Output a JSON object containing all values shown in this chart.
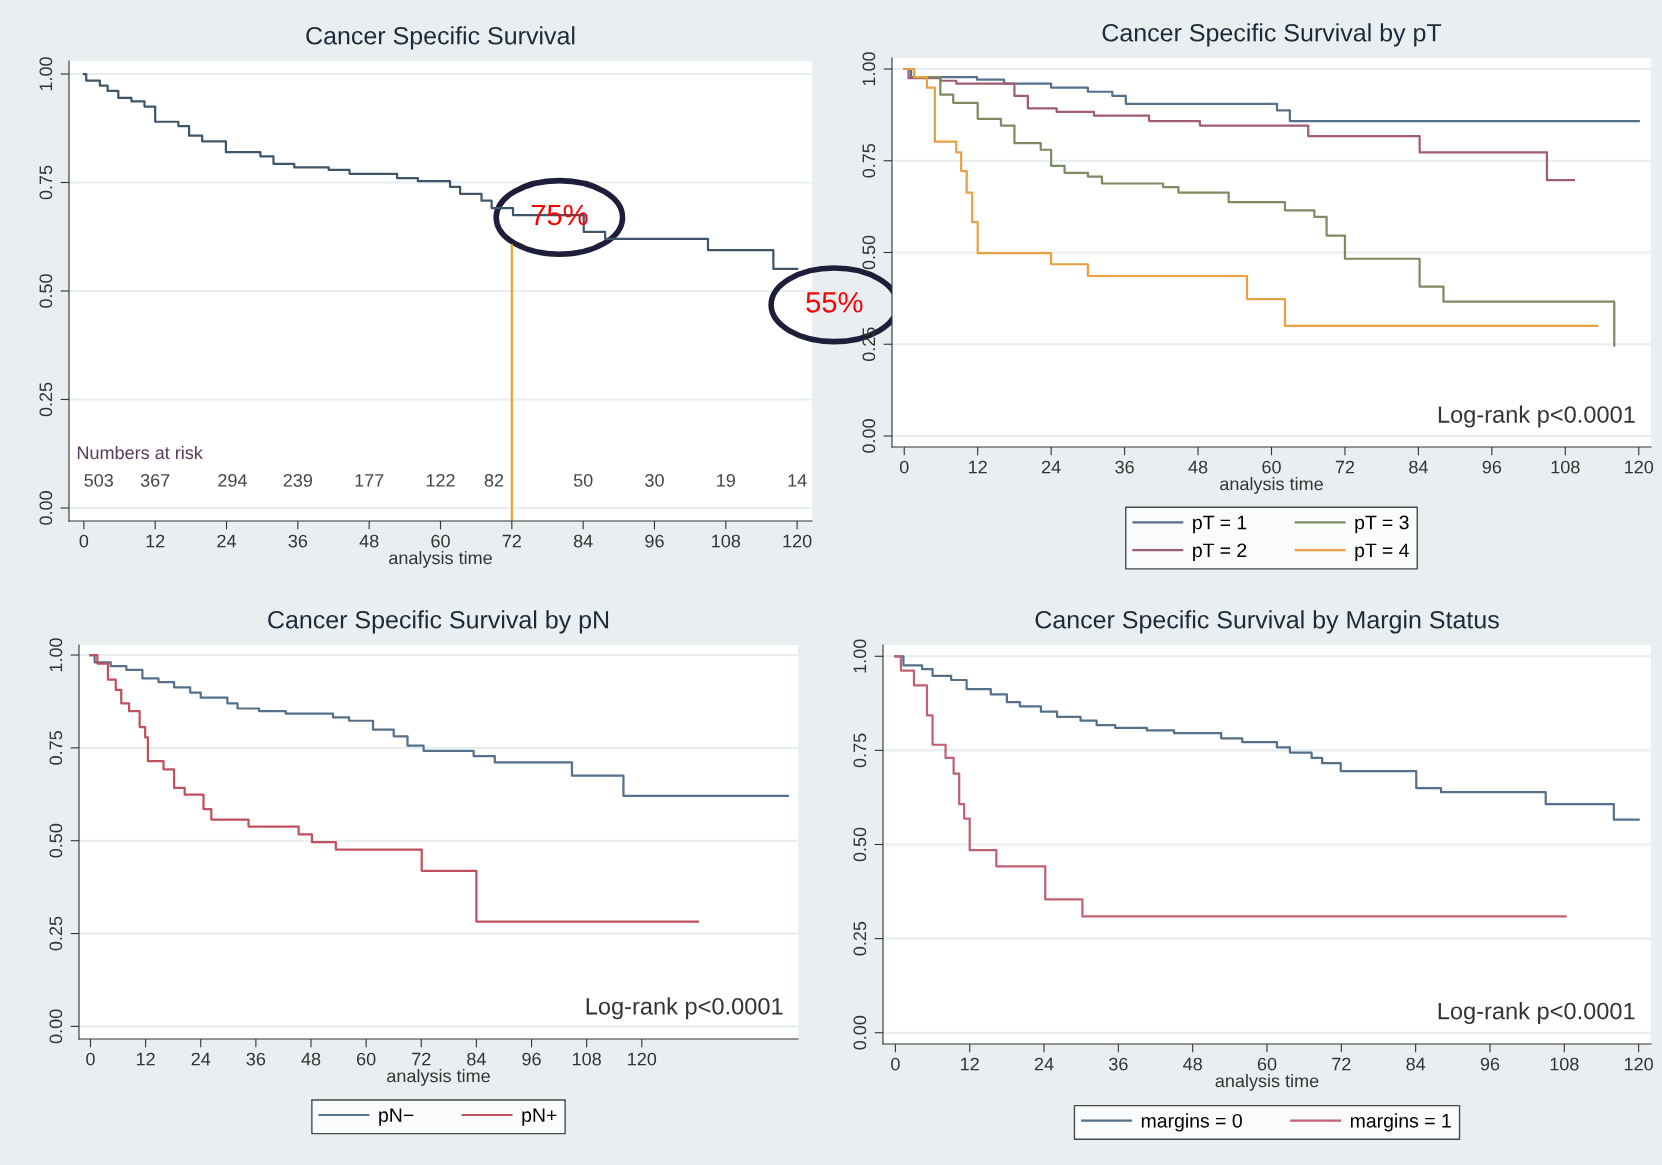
{
  "chart_data": [
    {
      "type": "step",
      "title": "Cancer Specific Survival",
      "xlabel": "analysis time",
      "xlim": [
        -2.5,
        122.5
      ],
      "ylim": [
        -0.03,
        1.03
      ],
      "xticks": [
        0,
        12,
        24,
        36,
        48,
        60,
        72,
        84,
        96,
        108,
        120
      ],
      "yticks": [
        {
          "value": 0,
          "label": "0.00"
        },
        {
          "value": 0.25,
          "label": "0.25"
        },
        {
          "value": 0.5,
          "label": "0.50"
        },
        {
          "value": 0.75,
          "label": "0.75"
        },
        {
          "value": 1,
          "label": "1.00"
        }
      ],
      "grid": "y",
      "legend": false,
      "series": [
        {
          "color": "#3f566a",
          "x": [
            0,
            0.4,
            2.7,
            4.0,
            5.8,
            8.0,
            10.2,
            12.0,
            15.9,
            17.7,
            19.9,
            23.9,
            29.7,
            31.9,
            35.4,
            41.2,
            44.7,
            52.7,
            56.2,
            61.6,
            63.3,
            66.9,
            68.6,
            72.2,
            84.1,
            87.7,
            105,
            116,
            120
          ],
          "values": [
            1.0,
            0.985,
            0.973,
            0.961,
            0.945,
            0.937,
            0.925,
            0.89,
            0.88,
            0.858,
            0.845,
            0.82,
            0.81,
            0.793,
            0.785,
            0.779,
            0.77,
            0.76,
            0.753,
            0.74,
            0.724,
            0.708,
            0.691,
            0.675,
            0.636,
            0.62,
            0.594,
            0.551,
            0.551
          ]
        }
      ],
      "ref_lines": [
        {
          "axis": "x",
          "value": 72,
          "color": "#e8a020"
        }
      ],
      "annotations": [
        "Numbers at risk",
        "503",
        "367",
        "294",
        "239",
        "177",
        "122",
        "82",
        "50",
        "30",
        "19",
        "14",
        "75%",
        "55%"
      ]
    },
    {
      "type": "step",
      "title": "Cancer Specific Survival by pT",
      "xlabel": "analysis time",
      "xlim": [
        -2,
        122
      ],
      "ylim": [
        -0.03,
        1.03
      ],
      "xticks": [
        0,
        12,
        24,
        36,
        48,
        60,
        72,
        84,
        96,
        108,
        120
      ],
      "yticks": [
        {
          "value": 0,
          "label": "0.00"
        },
        {
          "value": 0.25,
          "label": "0.25"
        },
        {
          "value": 0.5,
          "label": "0.50"
        },
        {
          "value": 0.75,
          "label": "0.75"
        },
        {
          "value": 1,
          "label": "1.00"
        }
      ],
      "grid": "y",
      "legend": "bottom",
      "series": [
        {
          "name": "pT = 1",
          "color": "#56708a",
          "x": [
            0,
            1.1,
            11.9,
            16.3,
            24,
            30,
            34,
            36.2,
            60.9,
            63,
            120
          ],
          "values": [
            1.0,
            0.978,
            0.971,
            0.96,
            0.949,
            0.938,
            0.927,
            0.905,
            0.887,
            0.858,
            0.858
          ]
        },
        {
          "name": "pT = 2",
          "color": "#a05c74",
          "x": [
            0,
            0.7,
            5.9,
            8.5,
            18,
            20.2,
            24.9,
            31,
            40,
            48.3,
            66,
            84.2,
            105,
            109.4
          ],
          "values": [
            1.0,
            0.975,
            0.968,
            0.96,
            0.927,
            0.893,
            0.883,
            0.873,
            0.858,
            0.846,
            0.817,
            0.773,
            0.697,
            0.697
          ]
        },
        {
          "name": "pT = 3",
          "color": "#7d8a62",
          "x": [
            0,
            1.6,
            5.9,
            8,
            12,
            15.8,
            18,
            22.3,
            24,
            26.2,
            30,
            32.3,
            42.3,
            44.8,
            53,
            62.2,
            67,
            69,
            72,
            84.2,
            88.1,
            116
          ],
          "values": [
            1.0,
            0.978,
            0.93,
            0.908,
            0.864,
            0.846,
            0.798,
            0.78,
            0.736,
            0.717,
            0.707,
            0.688,
            0.678,
            0.663,
            0.637,
            0.615,
            0.597,
            0.546,
            0.483,
            0.407,
            0.366,
            0.246
          ]
        },
        {
          "name": "pT = 4",
          "color": "#e8a040",
          "x": [
            0,
            1.6,
            3.7,
            5,
            8.5,
            9.3,
            10.2,
            11.1,
            12,
            24,
            30,
            56,
            62.2,
            113.2
          ],
          "values": [
            1.0,
            0.978,
            0.949,
            0.802,
            0.773,
            0.722,
            0.663,
            0.583,
            0.498,
            0.468,
            0.436,
            0.373,
            0.3,
            0.3
          ]
        }
      ],
      "annotations": [
        "Log-rank p<0.0001"
      ]
    },
    {
      "type": "step",
      "title": "Cancer Specific Survival by pN",
      "xlabel": "analysis time",
      "xlim": [
        -2.5,
        154
      ],
      "ylim": [
        -0.034,
        1.027
      ],
      "xticks": [
        0,
        12,
        24,
        36,
        48,
        60,
        72,
        84,
        96,
        108,
        120
      ],
      "yticks": [
        {
          "value": 0,
          "label": "0.00"
        },
        {
          "value": 0.25,
          "label": "0.25"
        },
        {
          "value": 0.5,
          "label": "0.50"
        },
        {
          "value": 0.75,
          "label": "0.75"
        },
        {
          "value": 1,
          "label": "1.00"
        }
      ],
      "grid": "y",
      "legend": "bottom",
      "series": [
        {
          "name": "pN−",
          "color": "#56708a",
          "x": [
            0,
            0.9,
            4.4,
            7.8,
            11.3,
            14.8,
            18.2,
            21.7,
            24,
            29.8,
            32,
            36.7,
            42.5,
            52.8,
            56.3,
            61.5,
            66,
            69,
            72.5,
            83.4,
            88,
            104.8,
            116,
            151.8
          ],
          "values": [
            1.0,
            0.98,
            0.97,
            0.96,
            0.937,
            0.927,
            0.913,
            0.899,
            0.885,
            0.87,
            0.856,
            0.849,
            0.842,
            0.832,
            0.823,
            0.799,
            0.781,
            0.756,
            0.742,
            0.728,
            0.711,
            0.675,
            0.621,
            0.621
          ]
        },
        {
          "name": "pN+",
          "color": "#c0505e",
          "x": [
            0,
            1.5,
            3.8,
            5.5,
            6.7,
            8.4,
            10.7,
            11.9,
            12.5,
            15.9,
            18.2,
            20.5,
            24.6,
            26.3,
            34.4,
            45.3,
            48.2,
            53.4,
            72.1,
            84,
            132.2
          ],
          "values": [
            1.0,
            0.977,
            0.934,
            0.906,
            0.87,
            0.849,
            0.806,
            0.778,
            0.714,
            0.692,
            0.642,
            0.624,
            0.585,
            0.557,
            0.538,
            0.517,
            0.496,
            0.476,
            0.419,
            0.282,
            0.282
          ]
        }
      ],
      "annotations": [
        "Log-rank p<0.0001"
      ]
    },
    {
      "type": "step",
      "title": "Cancer Specific Survival by Margin Status",
      "xlabel": "analysis time",
      "xlim": [
        -2,
        122
      ],
      "ylim": [
        -0.03,
        1.03
      ],
      "xticks": [
        0,
        12,
        24,
        36,
        48,
        60,
        72,
        84,
        96,
        108,
        120
      ],
      "yticks": [
        {
          "value": 0,
          "label": "0.00"
        },
        {
          "value": 0.25,
          "label": "0.25"
        },
        {
          "value": 0.5,
          "label": "0.50"
        },
        {
          "value": 0.75,
          "label": "0.75"
        },
        {
          "value": 1,
          "label": "1.00"
        }
      ],
      "grid": "y",
      "legend": "bottom",
      "series": [
        {
          "name": "margins = 0",
          "color": "#56708a",
          "x": [
            0,
            1.3,
            4.3,
            6,
            9,
            11.5,
            15.4,
            18,
            20.1,
            23.5,
            26.1,
            29.9,
            32.5,
            35.5,
            40.6,
            45,
            52.6,
            56,
            61.6,
            63.7,
            67.2,
            68.9,
            71.9,
            84.1,
            88.1,
            105,
            116,
            120
          ],
          "values": [
            1.0,
            0.976,
            0.966,
            0.948,
            0.937,
            0.913,
            0.899,
            0.878,
            0.867,
            0.853,
            0.839,
            0.829,
            0.817,
            0.81,
            0.803,
            0.796,
            0.782,
            0.772,
            0.758,
            0.744,
            0.73,
            0.716,
            0.695,
            0.65,
            0.639,
            0.607,
            0.566,
            0.566
          ]
        },
        {
          "name": "margins = 1",
          "color": "#c06072",
          "x": [
            0,
            0.9,
            3,
            5.1,
            6,
            8.1,
            9.4,
            10.3,
            11.1,
            12,
            16.3,
            24.2,
            30.2,
            108.2
          ],
          "values": [
            1.0,
            0.962,
            0.923,
            0.843,
            0.765,
            0.73,
            0.688,
            0.607,
            0.569,
            0.485,
            0.442,
            0.354,
            0.309,
            0.309
          ]
        }
      ],
      "annotations": [
        "Log-rank p<0.0001"
      ]
    }
  ]
}
